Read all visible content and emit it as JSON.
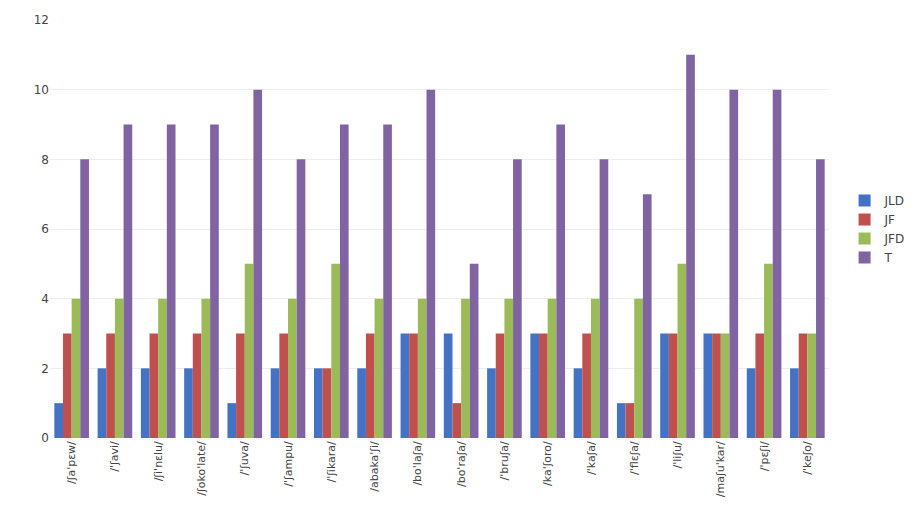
{
  "chart_data": {
    "type": "bar",
    "categories": [
      "/ʃa'pɛw/",
      "/'ʃavi/",
      "/ʃi'nɛlu/",
      "/ʃoko'late/",
      "/'ʃuva/",
      "/'ʃampu/",
      "/'ʃikara/",
      "/abaka'ʃi/",
      "/bo'laʃa/",
      "/bo'raʃa/",
      "/'bruʃa/",
      "/ka'ʃoro/",
      "/'kaʃa/",
      "/'flɛʃa/",
      "/'liʃu/",
      "/maʃu'kar/",
      "/'pɛʃi/",
      "/'keʃo/"
    ],
    "series": [
      {
        "name": "JLD",
        "color": "#4472C4",
        "values": [
          1,
          2,
          2,
          2,
          1,
          2,
          2,
          2,
          3,
          3,
          2,
          3,
          2,
          1,
          3,
          3,
          2,
          2
        ]
      },
      {
        "name": "JF",
        "color": "#C0504D",
        "values": [
          3,
          3,
          3,
          3,
          3,
          3,
          2,
          3,
          3,
          1,
          3,
          3,
          3,
          1,
          3,
          3,
          3,
          3
        ]
      },
      {
        "name": "JFD",
        "color": "#9BBB59",
        "values": [
          4,
          4,
          4,
          4,
          5,
          4,
          5,
          4,
          4,
          4,
          4,
          4,
          4,
          4,
          5,
          3,
          5,
          3
        ]
      },
      {
        "name": "T",
        "color": "#8064A2",
        "values": [
          8,
          9,
          9,
          9,
          10,
          8,
          9,
          9,
          10,
          5,
          8,
          9,
          8,
          7,
          11,
          10,
          10,
          8
        ]
      }
    ],
    "ylim": [
      0,
      12
    ],
    "yticks": [
      0,
      2,
      4,
      6,
      8,
      10,
      12
    ],
    "grid": true,
    "legend": "right"
  }
}
